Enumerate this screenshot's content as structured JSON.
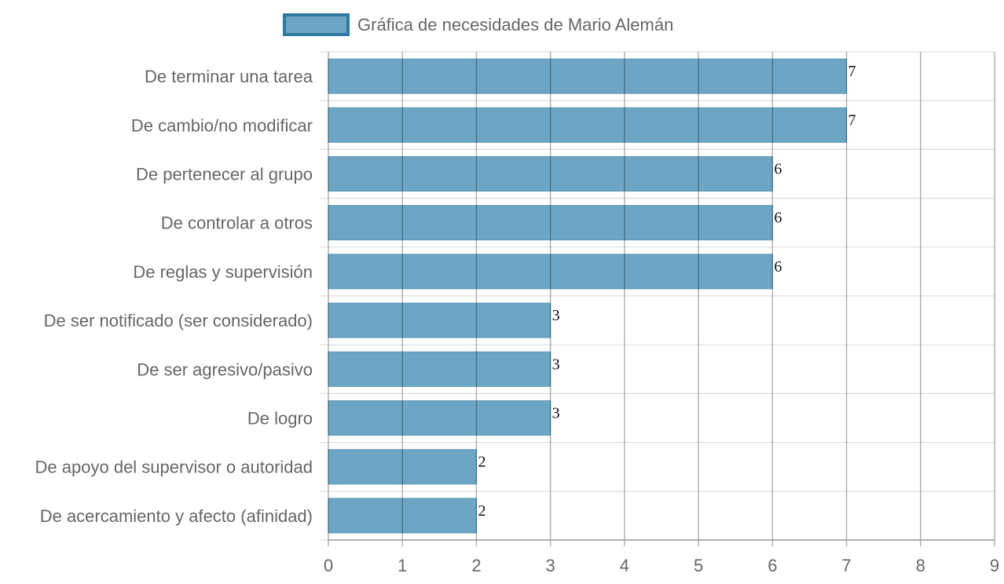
{
  "chart_data": {
    "type": "bar",
    "orientation": "horizontal",
    "categories": [
      "De terminar una tarea",
      "De cambio/no modificar",
      "De pertenecer al grupo",
      "De controlar a otros",
      "De reglas y supervisión",
      "De ser notificado (ser considerado)",
      "De ser agresivo/pasivo",
      "De logro",
      "De apoyo del supervisor o autoridad",
      "De acercamiento y afecto (afinidad)"
    ],
    "series": [
      {
        "name": "Gráfica de necesidades de Mario Alemán",
        "values": [
          7,
          7,
          6,
          6,
          6,
          3,
          3,
          3,
          2,
          2
        ],
        "color": "#6ca6c4",
        "border_color": "#2e7aa1"
      }
    ],
    "xlim": [
      0,
      9
    ],
    "x_ticks": [
      "0",
      "1",
      "2",
      "3",
      "4",
      "5",
      "6",
      "7",
      "8",
      "9"
    ],
    "grid": true,
    "legend": "top-center",
    "data_labels": true
  }
}
